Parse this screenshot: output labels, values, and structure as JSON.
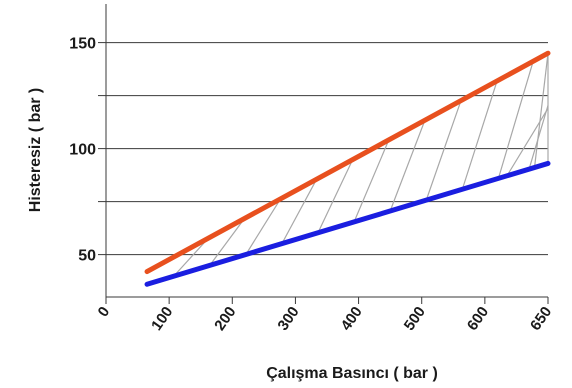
{
  "chart_data": {
    "type": "line",
    "title": "",
    "xlabel": "Çalışma Basıncı ( bar )",
    "ylabel": "Histeresiz ( bar )",
    "x_tick_labels": [
      "0",
      "100",
      "200",
      "300",
      "400",
      "500",
      "600",
      "650"
    ],
    "y_ticks": [
      50,
      75,
      100,
      125,
      150
    ],
    "y_tick_labels": [
      "50",
      "100",
      "150"
    ],
    "ylim": [
      30,
      155
    ],
    "grid": true,
    "legend": "none",
    "band": "hatched region between the two lines",
    "series": [
      {
        "color": "#e8501e",
        "x_index": [
          0.65,
          7
        ],
        "values": [
          42,
          145
        ]
      },
      {
        "color": "#1a1ee0",
        "x_index": [
          0.65,
          7
        ],
        "values": [
          36,
          93
        ]
      }
    ]
  }
}
